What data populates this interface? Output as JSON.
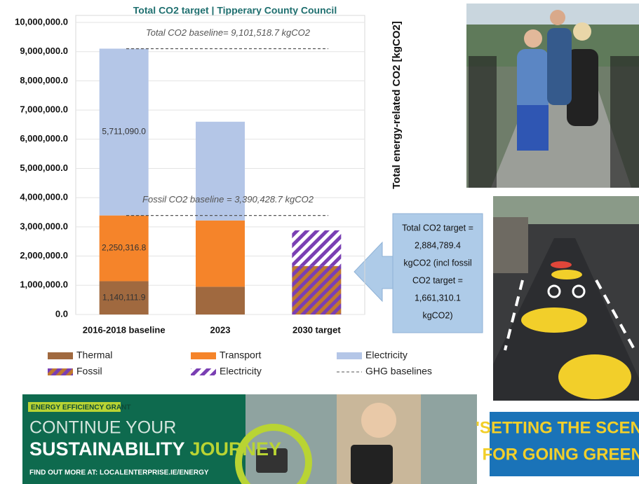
{
  "chart_data": {
    "type": "bar",
    "stacked": true,
    "title": "Total CO2 target  |  Tipperary County Council",
    "y_label": "Total energy-related CO2 [kgCO2]",
    "categories": [
      "2016-2018 baseline",
      "2023",
      "2030 target"
    ],
    "ylim": [
      0,
      10000000
    ],
    "yticks": [
      {
        "value": 0,
        "label": "0.0"
      },
      {
        "value": 1000000,
        "label": "1,000,000.0"
      },
      {
        "value": 2000000,
        "label": "2,000,000.0"
      },
      {
        "value": 3000000,
        "label": "3,000,000.0"
      },
      {
        "value": 4000000,
        "label": "4,000,000.0"
      },
      {
        "value": 5000000,
        "label": "5,000,000.0"
      },
      {
        "value": 6000000,
        "label": "6,000,000.0"
      },
      {
        "value": 7000000,
        "label": "7,000,000.0"
      },
      {
        "value": 8000000,
        "label": "8,000,000.0"
      },
      {
        "value": 9000000,
        "label": "9,000,000.0"
      },
      {
        "value": 10000000,
        "label": "10,000,000.0"
      }
    ],
    "grid": true,
    "series": [
      {
        "name": "Thermal",
        "color": "#a0693f",
        "values": [
          1140111.9,
          950000,
          null
        ],
        "value_labels": [
          "1,140,111.9",
          null,
          null
        ]
      },
      {
        "name": "Transport",
        "color": "#f5842a",
        "values": [
          2250316.8,
          2270000,
          null
        ],
        "value_labels": [
          "2,250,316.8",
          null,
          null
        ]
      },
      {
        "name": "Electricity",
        "color": "#b4c6e7",
        "values": [
          5711090.0,
          3380000,
          null
        ],
        "value_labels": [
          "5,711,090.0",
          null,
          null
        ]
      },
      {
        "name": "Fossil",
        "color": "#c0782f",
        "hatch_color": "#7a3fb3",
        "values": [
          null,
          null,
          1661310.1
        ]
      },
      {
        "name": "Electricity",
        "color": "#ffffff",
        "hatch_color": "#7a3fb3",
        "values": [
          null,
          null,
          1220000
        ]
      }
    ],
    "baselines": [
      {
        "label": "Total CO2 baseline= 9,101,518.7 kgCO2",
        "value": 9101518.7
      },
      {
        "label": "Fossil CO2 baseline = 3,390,428.7 kgCO2",
        "value": 3390428.7
      }
    ],
    "baseline_legend": "GHG baselines",
    "callout": [
      "Total CO2 target =",
      "2,884,789.4",
      "kgCO2 (incl fossil",
      "CO2 target =",
      "1,661,310.1",
      "kgCO2)"
    ]
  },
  "banner": {
    "tag": "ENERGY EFFICIENCY GRANT",
    "line1": "CONTINUE YOUR",
    "line2a": "SUSTAINABILITY",
    "line2b": "JOURNEY",
    "link": "FIND OUT MORE AT: LOCALENTERPRISE.IE/ENERGY"
  },
  "poster": {
    "line1": "'SETTING THE SCENE",
    "line2": "FOR GOING GREEN'"
  }
}
